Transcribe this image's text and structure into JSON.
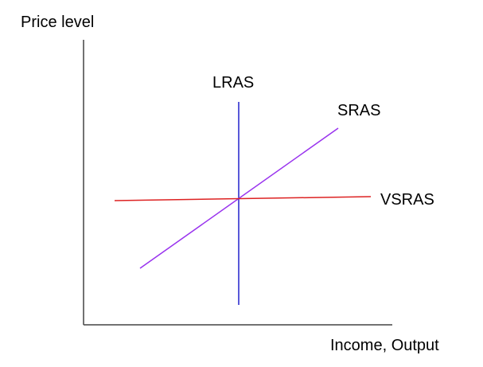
{
  "diagram": {
    "y_axis_label": "Price level",
    "x_axis_label": "Income, Output",
    "curves": [
      {
        "id": "lras",
        "label": "LRAS",
        "color": "#2222cc"
      },
      {
        "id": "sras",
        "label": "SRAS",
        "color": "#9933ee"
      },
      {
        "id": "vsras",
        "label": "VSRAS",
        "color": "#dd2222"
      }
    ],
    "axis_color": "#444444"
  }
}
